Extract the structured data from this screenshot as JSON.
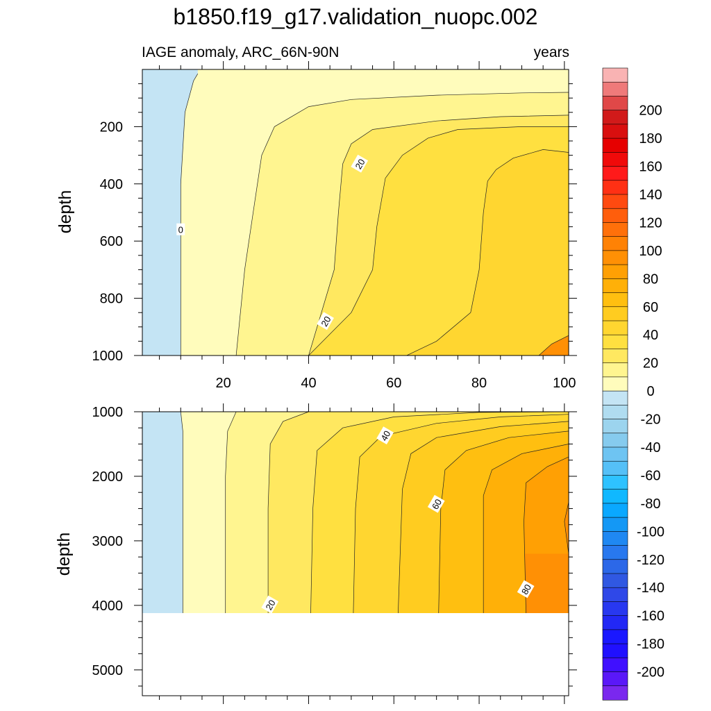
{
  "title": "b1850.f19_g17.validation_nuopc.002",
  "chart_data": [
    {
      "type": "contour",
      "panel": "upper",
      "left_label": "IAGE anomaly, ARC_66N-90N",
      "right_label": "years",
      "ylabel": "depth",
      "xlabel": "",
      "xlim": [
        1,
        101
      ],
      "ylim": [
        1000,
        0
      ],
      "xticks": [
        20,
        40,
        60,
        80,
        100
      ],
      "yticks": [
        200,
        400,
        600,
        800,
        1000
      ],
      "contour_labels": [
        {
          "text": "0",
          "x": 10,
          "depth": 560
        },
        {
          "text": "20",
          "x": 52,
          "depth": 330
        },
        {
          "text": "20",
          "x": 44,
          "depth": 880
        }
      ],
      "contours": [
        {
          "level": 0,
          "points": [
            [
              14,
              15
            ],
            [
              13,
              40
            ],
            [
              11,
              150
            ],
            [
              10,
              400
            ],
            [
              10,
              700
            ],
            [
              10,
              1000
            ]
          ]
        },
        {
          "level": 10,
          "points": [
            [
              101,
              80
            ],
            [
              90,
              82
            ],
            [
              70,
              90
            ],
            [
              50,
              105
            ],
            [
              40,
              130
            ],
            [
              32,
              200
            ],
            [
              29,
              300
            ],
            [
              27,
              500
            ],
            [
              25,
              700
            ],
            [
              23,
              1000
            ]
          ]
        },
        {
          "level": 20,
          "points": [
            [
              101,
              160
            ],
            [
              85,
              165
            ],
            [
              70,
              180
            ],
            [
              55,
              210
            ],
            [
              50,
              260
            ],
            [
              48,
              330
            ],
            [
              47,
              500
            ],
            [
              46,
              700
            ],
            [
              40,
              1000
            ]
          ]
        },
        {
          "level": 25,
          "points": [
            [
              101,
              200
            ],
            [
              90,
              200
            ],
            [
              75,
              210
            ],
            [
              68,
              240
            ],
            [
              62,
              300
            ],
            [
              58,
              380
            ],
            [
              56,
              550
            ],
            [
              55,
              700
            ],
            [
              50,
              850
            ],
            [
              40,
              1000
            ]
          ]
        },
        {
          "level": 30,
          "points": [
            [
              101,
              290
            ],
            [
              95,
              280
            ],
            [
              88,
              310
            ],
            [
              84,
              350
            ],
            [
              82,
              390
            ],
            [
              81,
              500
            ],
            [
              80,
              700
            ],
            [
              78,
              850
            ],
            [
              70,
              950
            ],
            [
              63,
              1000
            ]
          ]
        },
        {
          "level": 35,
          "points": [
            [
              101,
              930
            ],
            [
              97,
              960
            ],
            [
              94,
              1000
            ]
          ]
        }
      ]
    },
    {
      "type": "contour",
      "panel": "lower",
      "ylabel": "depth",
      "xlabel": "",
      "xlim": [
        1,
        101
      ],
      "ylim": [
        5400,
        1000
      ],
      "xticks": [
        20,
        40,
        60,
        80,
        100
      ],
      "yticks": [
        1000,
        2000,
        3000,
        4000,
        5000
      ],
      "ocean_bottom_depth": 4120,
      "contour_labels": [
        {
          "text": "40",
          "x": 58,
          "depth": 1370
        },
        {
          "text": "60",
          "x": 70,
          "depth": 2430
        },
        {
          "text": "20",
          "x": 31,
          "depth": 3990
        },
        {
          "text": "80",
          "x": 91,
          "depth": 3750
        }
      ],
      "contours": [
        {
          "level": 0,
          "points": [
            [
              10,
              1000
            ],
            [
              10.5,
              1300
            ],
            [
              10.5,
              4120
            ]
          ]
        },
        {
          "level": 10,
          "points": [
            [
              23,
              1000
            ],
            [
              21,
              1300
            ],
            [
              20.5,
              2000
            ],
            [
              20.5,
              4120
            ]
          ]
        },
        {
          "level": 20,
          "points": [
            [
              40,
              1000
            ],
            [
              34,
              1150
            ],
            [
              31,
              1500
            ],
            [
              30.5,
              2500
            ],
            [
              30.5,
              4120
            ]
          ]
        },
        {
          "level": 25,
          "points": [
            [
              101,
              1000
            ],
            [
              80,
              1010
            ],
            [
              60,
              1080
            ],
            [
              48,
              1250
            ],
            [
              42,
              1600
            ],
            [
              41,
              2500
            ],
            [
              40.5,
              4120
            ]
          ]
        },
        {
          "level": 30,
          "points": [
            [
              101,
              1040
            ],
            [
              85,
              1080
            ],
            [
              70,
              1180
            ],
            [
              57,
              1380
            ],
            [
              52,
              1700
            ],
            [
              51,
              2500
            ],
            [
              50.5,
              4120
            ]
          ]
        },
        {
          "level": 40,
          "points": [
            [
              101,
              1150
            ],
            [
              85,
              1230
            ],
            [
              70,
              1400
            ],
            [
              64,
              1650
            ],
            [
              62,
              2200
            ],
            [
              61,
              4120
            ]
          ]
        },
        {
          "level": 50,
          "points": [
            [
              101,
              1300
            ],
            [
              87,
              1400
            ],
            [
              77,
              1600
            ],
            [
              72,
              1900
            ],
            [
              71,
              2500
            ],
            [
              70.5,
              4120
            ]
          ]
        },
        {
          "level": 60,
          "points": [
            [
              101,
              1500
            ],
            [
              90,
              1650
            ],
            [
              83,
              1900
            ],
            [
              81,
              2300
            ],
            [
              81,
              4120
            ]
          ]
        },
        {
          "level": 70,
          "points": [
            [
              101,
              1700
            ],
            [
              96,
              1850
            ],
            [
              91,
              2100
            ],
            [
              90.5,
              2700
            ],
            [
              91,
              4120
            ]
          ]
        },
        {
          "level": 80,
          "points": [
            [
              101,
              2400
            ],
            [
              100,
              2700
            ],
            [
              101,
              3200
            ]
          ]
        }
      ]
    }
  ],
  "colorbar": {
    "labels": [
      "200",
      "180",
      "160",
      "140",
      "120",
      "100",
      "80",
      "60",
      "40",
      "20",
      "0",
      "-20",
      "-40",
      "-60",
      "-80",
      "-100",
      "-120",
      "-140",
      "-160",
      "-180",
      "-200"
    ],
    "colors": [
      "#f9b3b3",
      "#ef7a7a",
      "#e04848",
      "#d11a1a",
      "#d90f0f",
      "#e60000",
      "#f00a0a",
      "#ff1a1a",
      "#ff3014",
      "#ff4a10",
      "#ff5e0c",
      "#ff700a",
      "#ff8205",
      "#ff9005",
      "#ffa004",
      "#ffb008",
      "#ffbf10",
      "#ffcc20",
      "#ffd630",
      "#ffe040",
      "#ffe860",
      "#fff590",
      "#fffcbc",
      "#c4e4f4",
      "#b0dcf0",
      "#9cd4ee",
      "#86cbee",
      "#6ec4f2",
      "#55c0f7",
      "#2ec2ff",
      "#10b8ff",
      "#0aa8ff",
      "#1498f5",
      "#1f88f2",
      "#2878ee",
      "#2c68e8",
      "#3058e2",
      "#2f48e8",
      "#2838f0",
      "#2228f5",
      "#1a18ff",
      "#2010ff",
      "#4010ff",
      "#5a18f8",
      "#7a28ee"
    ]
  },
  "fill_colors": {
    "lt0": "#c4e4f4",
    "0to10": "#fffcbc",
    "10to20": "#fff590",
    "20to25": "#ffe860",
    "25to30": "#ffe040",
    "30to40": "#ffd630",
    "40to50": "#ffcc20",
    "50to60": "#ffbf10",
    "60to70": "#ffb008",
    "70to80": "#ffa004",
    "gt80": "#ff9005"
  }
}
